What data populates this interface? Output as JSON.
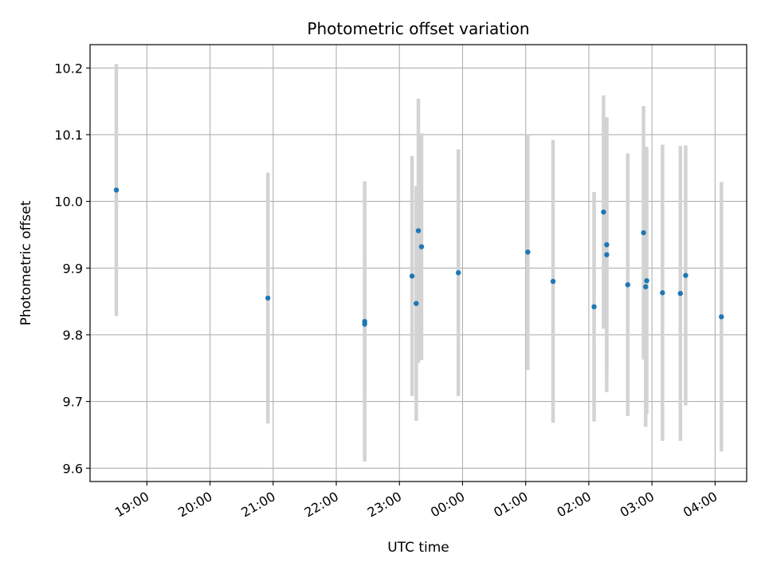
{
  "chart_data": {
    "type": "scatter",
    "title": "Photometric offset variation",
    "xlabel": "UTC time",
    "ylabel": "Photometric offset",
    "x_tick_labels": [
      "19:00",
      "20:00",
      "21:00",
      "22:00",
      "23:00",
      "00:00",
      "01:00",
      "02:00",
      "03:00",
      "04:00"
    ],
    "x_tick_hours": [
      19,
      20,
      21,
      22,
      23,
      24,
      25,
      26,
      27,
      28
    ],
    "xlim": [
      "18:06",
      "04:30"
    ],
    "ylim": [
      9.58,
      10.235
    ],
    "y_ticks": [
      9.6,
      9.7,
      9.8,
      9.9,
      10.0,
      10.1,
      10.2
    ],
    "y_tick_labels": [
      "9.6",
      "9.7",
      "9.8",
      "9.9",
      "10.0",
      "10.1",
      "10.2"
    ],
    "grid": true,
    "point_color": "#1f77b4",
    "errorbar_color": "#d3d3d3",
    "points": [
      {
        "time": "18:31",
        "y": 10.017,
        "err": 0.189
      },
      {
        "time": "20:55",
        "y": 9.855,
        "err": 0.188
      },
      {
        "time": "22:27",
        "y": 9.82,
        "err": 0.21
      },
      {
        "time": "22:27",
        "y": 9.816,
        "err": 0.1
      },
      {
        "time": "23:12",
        "y": 9.888,
        "err": 0.18
      },
      {
        "time": "23:16",
        "y": 9.847,
        "err": 0.176
      },
      {
        "time": "23:18",
        "y": 9.956,
        "err": 0.198
      },
      {
        "time": "23:21",
        "y": 9.932,
        "err": 0.17
      },
      {
        "time": "23:56",
        "y": 9.893,
        "err": 0.185
      },
      {
        "time": "01:02",
        "y": 9.924,
        "err": 0.177
      },
      {
        "time": "01:26",
        "y": 9.88,
        "err": 0.212
      },
      {
        "time": "02:05",
        "y": 9.842,
        "err": 0.172
      },
      {
        "time": "02:14",
        "y": 9.984,
        "err": 0.175
      },
      {
        "time": "02:17",
        "y": 9.935,
        "err": 0.19
      },
      {
        "time": "02:17",
        "y": 9.92,
        "err": 0.206
      },
      {
        "time": "02:37",
        "y": 9.875,
        "err": 0.197
      },
      {
        "time": "02:52",
        "y": 9.953,
        "err": 0.19
      },
      {
        "time": "02:54",
        "y": 9.872,
        "err": 0.21
      },
      {
        "time": "02:55",
        "y": 9.881,
        "err": 0.2
      },
      {
        "time": "03:10",
        "y": 9.863,
        "err": 0.222
      },
      {
        "time": "03:27",
        "y": 9.862,
        "err": 0.221
      },
      {
        "time": "03:32",
        "y": 9.889,
        "err": 0.195
      },
      {
        "time": "04:06",
        "y": 9.827,
        "err": 0.202
      }
    ]
  }
}
